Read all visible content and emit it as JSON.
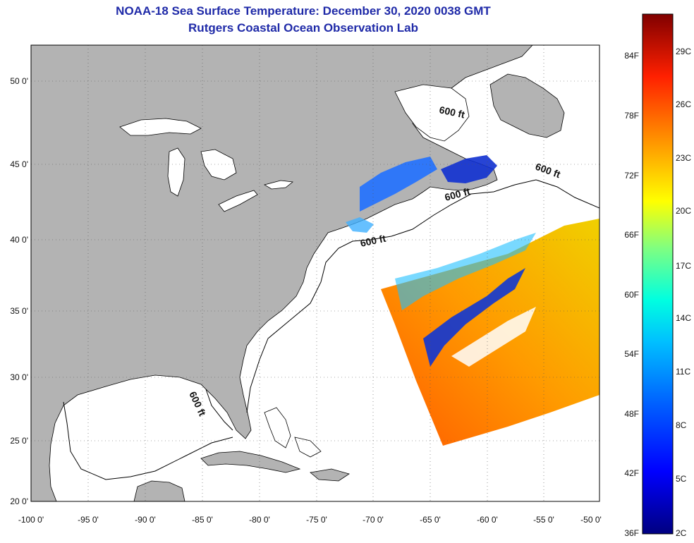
{
  "title": {
    "line1": "NOAA-18 Sea Surface Temperature:  December 30, 2020 0038 GMT",
    "line2": "Rutgers Coastal Ocean Observation Lab"
  },
  "map": {
    "x_ticks": [
      "-100 0'",
      "-95 0'",
      "-90 0'",
      "-85 0'",
      "-80 0'",
      "-75 0'",
      "-70 0'",
      "-65 0'",
      "-60 0'",
      "-55 0'",
      "-50 0'"
    ],
    "y_ticks": [
      "50 0'",
      "45 0'",
      "40 0'",
      "35 0'",
      "30 0'",
      "25 0'",
      "20 0'"
    ],
    "contour_label": "600 ft",
    "colors": {
      "land": "#b3b3b3",
      "ocean": "#ffffff",
      "coastline": "#000000"
    }
  },
  "colorbar": {
    "fahrenheit": [
      "84F",
      "78F",
      "72F",
      "66F",
      "60F",
      "54F",
      "48F",
      "42F",
      "36F"
    ],
    "celsius": [
      "29C",
      "26C",
      "23C",
      "20C",
      "17C",
      "14C",
      "11C",
      "8C",
      "5C",
      "2C"
    ],
    "colors": [
      "#800000",
      "#ff0000",
      "#ff8000",
      "#ffff00",
      "#80ff80",
      "#00ffff",
      "#0080ff",
      "#0000ff",
      "#000080"
    ]
  }
}
